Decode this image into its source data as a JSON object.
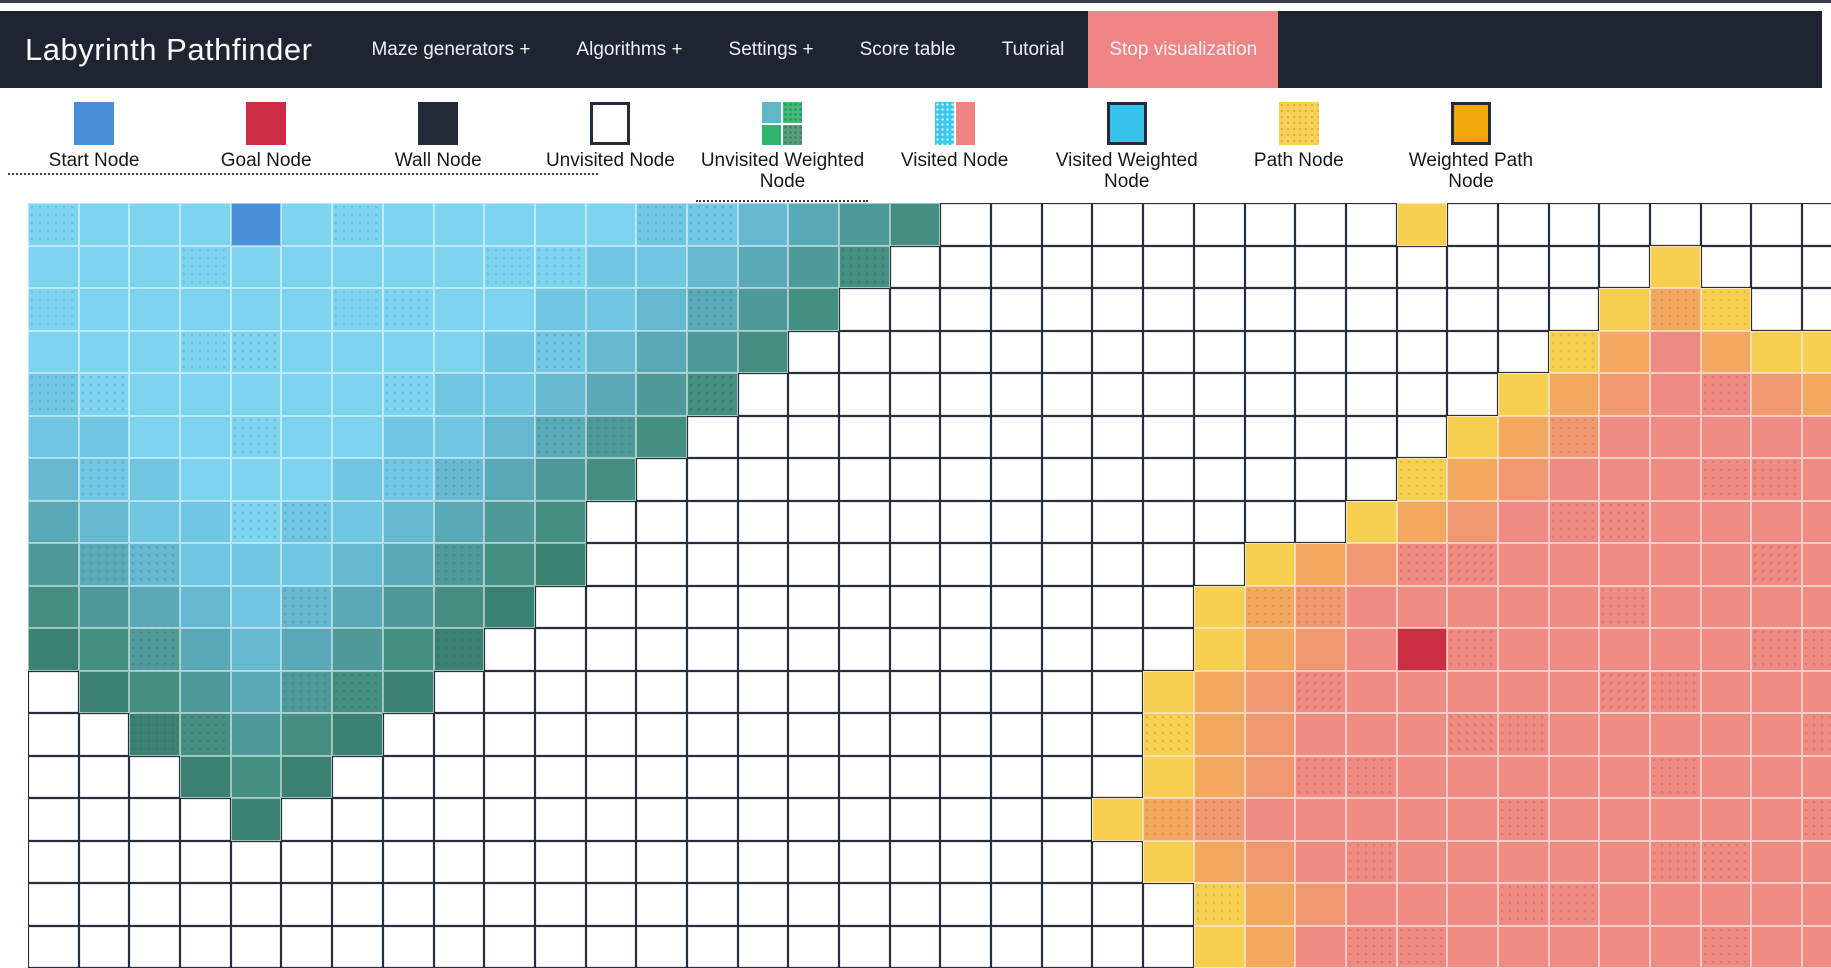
{
  "navbar": {
    "brand": "Labyrinth Pathfinder",
    "items": [
      {
        "label": "Maze generators +",
        "variant": "normal"
      },
      {
        "label": "Algorithms +",
        "variant": "normal"
      },
      {
        "label": "Settings +",
        "variant": "normal"
      },
      {
        "label": "Score table",
        "variant": "normal"
      },
      {
        "label": "Tutorial",
        "variant": "normal"
      },
      {
        "label": "Stop visualization",
        "variant": "danger"
      }
    ]
  },
  "legend": {
    "items": [
      {
        "label": "Start Node",
        "icon": "start-node"
      },
      {
        "label": "Goal Node",
        "icon": "goal-node"
      },
      {
        "label": "Wall Node",
        "icon": "wall-node"
      },
      {
        "label": "Unvisited Node",
        "icon": "unvisited-node"
      },
      {
        "label": "Unvisited Weighted Node",
        "icon": "unvisited-weighted-node"
      },
      {
        "label": "Visited Node",
        "icon": "visited-node"
      },
      {
        "label": "Visited Weighted Node",
        "icon": "visited-weighted-node"
      },
      {
        "label": "Path Node",
        "icon": "path-node"
      },
      {
        "label": "Weighted Path Node",
        "icon": "weighted-path-node"
      }
    ]
  },
  "colors": {
    "navbar_bg": "#1e2531",
    "navbar_text": "#eef1f4",
    "stop_button_bg": "#ef8585",
    "icon": {
      "start": "#4a90d8",
      "goal": "#cd2c44",
      "wall": "#242b38",
      "unvisited_border": "#242b38",
      "uw_tl": "#60b7c8",
      "uw_tr": "#3fba77",
      "uw_bl": "#2eb56e",
      "uw_br": "#55a07b",
      "visited_left": "#39c8f1",
      "visited_right": "#f08382",
      "visited_weighted": "#35c3ec",
      "path": "#f6d155",
      "path_dot": "#eca93a",
      "weighted_path": "#f1a708"
    }
  },
  "grid": {
    "cols": 36,
    "cell_types": {
      ".": "unvisited",
      "S": "start-node",
      "G": "goal-node",
      "a": "visited-start-light",
      "b": "visited-start-light2",
      "c": "visited-start-mid",
      "d": "visited-start-teal",
      "e": "visited-start-dark",
      "f": "visited-start-frontier",
      "g": "visited-start-frontier-dark",
      "Y": "frontier-yellow",
      "O": "frontier-orange",
      "P": "frontier-orange-salmon",
      "R": "visited-goal-salmon"
    },
    "cell_colors": {
      ".": "#ffffff",
      "S": "#4a90d8",
      "G": "#cb2d43",
      "a": "#7cd4ef",
      "b": "#71c7e1",
      "c": "#65b8cf",
      "d": "#58a8b5",
      "e": "#4e9a9b",
      "f": "#448e82",
      "g": "#3b8171",
      "Y": "#f6cf50",
      "O": "#f2a95e",
      "P": "#f0986f",
      "R": "#ef8b83"
    },
    "rows": [
      "aaaaSaaaaaaabbcdef.........Y........",
      "aaaaaaaaaaabbcdef...............Y...",
      "aaaaaaaaaabbcdef...............YOY..",
      "aaaaaaaaabbcdef...............YOROYY",
      "baaaaaaabbcdef...............YOPRRPO",
      "bbaaaaabbcdef...............YOPRRRRR",
      "cbbaaabbcdef...............YOPRRRRRR",
      "dcbbabbcdef...............YOPRRRRRRR",
      "edcbbbcdefg.............YOPRRRRRRRRR",
      "fedcbcdefg.............YOPRRRRRRRRRR",
      "gfedcdefg..............YOPRGRRRRRRRR",
      ".gfedefg..............YOPRRRRRRRRRRR",
      "..gfefg...............YOPRRRRRRRRRRR",
      "...gfg................YOPRRRRRRRRRRR",
      "....g................YOPRRRRRRRRRRRR",
      "......................YOPRRRRRRRRRRR",
      ".......................YOPRRRRRRRRRR",
      ".......................YORRRRRRRRRRR"
    ]
  }
}
